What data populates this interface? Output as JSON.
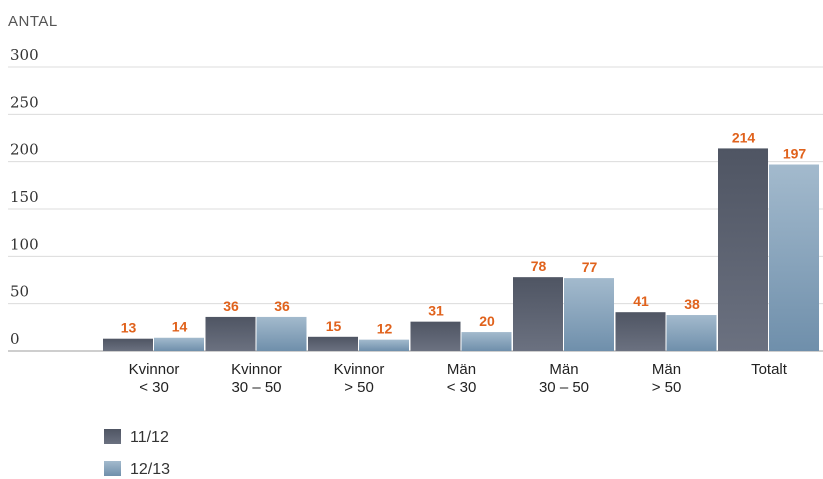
{
  "chart_data": {
    "type": "bar",
    "ylabel": "ANTAL",
    "ylim": [
      0,
      300
    ],
    "yticks": [
      0,
      50,
      100,
      150,
      200,
      250,
      300
    ],
    "grid": true,
    "categories": [
      [
        "Kvinnor",
        "< 30"
      ],
      [
        "Kvinnor",
        "30 – 50"
      ],
      [
        "Kvinnor",
        "> 50"
      ],
      [
        "Män",
        "< 30"
      ],
      [
        "Män",
        "30 – 50"
      ],
      [
        "Män",
        "> 50"
      ],
      [
        "Totalt"
      ]
    ],
    "series": [
      {
        "name": "11/12",
        "color": "#5c6270",
        "values": [
          13,
          36,
          15,
          31,
          78,
          41,
          214
        ]
      },
      {
        "name": "12/13",
        "color": "#7e9cb6",
        "values": [
          14,
          36,
          12,
          20,
          77,
          38,
          197
        ]
      }
    ],
    "data_label_color": "#e0621c",
    "legend": "bottom-left"
  }
}
